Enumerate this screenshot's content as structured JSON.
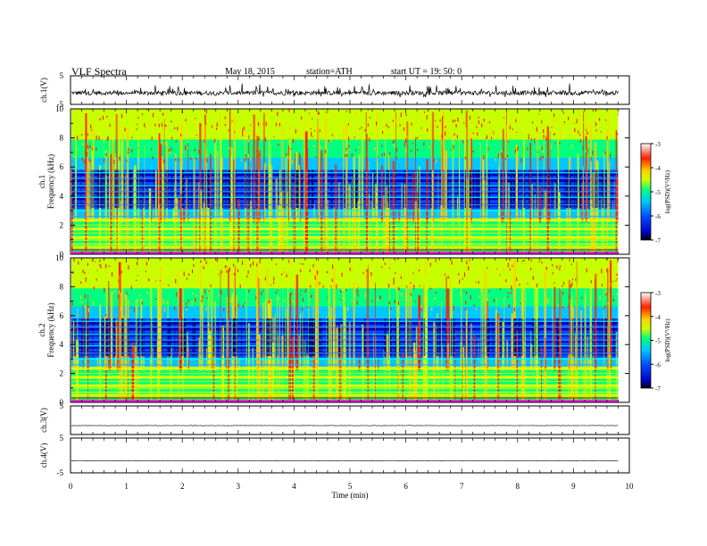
{
  "header": {
    "title": "VLF  Spectra",
    "date": "May 18, 2015",
    "station": "station=ATH",
    "start": "start  UT =   19: 50: 0"
  },
  "colors": {
    "axis": "#000000",
    "background": "#ffffff",
    "colormap": [
      "#000000",
      "#0000c8",
      "#0050ff",
      "#00c8ff",
      "#00ff80",
      "#c8ff00",
      "#ffd000",
      "#ff2000",
      "#ffffff"
    ]
  },
  "chart_data": [
    {
      "type": "line",
      "panel": "ch1-waveform",
      "ylabel": "ch.1(V)",
      "ylim": [
        -5,
        5
      ],
      "yticks": [
        "5",
        "-5"
      ],
      "trace_end_min": 9.8
    },
    {
      "type": "heatmap",
      "panel": "ch1-spectrogram",
      "ylabel_channel": "ch.1",
      "ylabel": "Frequency  (kHz)",
      "ylim": [
        0,
        10
      ],
      "yticks": [
        "0",
        "2",
        "4",
        "6",
        "8",
        "10"
      ],
      "xlim": [
        0,
        10
      ],
      "data_end_min": 9.8,
      "colorbar": {
        "label": "log(PSD)(V²/Hz)",
        "range": [
          -7,
          -3
        ],
        "ticks": [
          "-3",
          "-4",
          "-5",
          "-6",
          "-7"
        ]
      }
    },
    {
      "type": "heatmap",
      "panel": "ch2-spectrogram",
      "ylabel_channel": "ch.2",
      "ylabel": "Frequency  (kHz)",
      "ylim": [
        0,
        10
      ],
      "yticks": [
        "0",
        "2",
        "4",
        "6",
        "8",
        "10"
      ],
      "xlim": [
        0,
        10
      ],
      "data_end_min": 9.8,
      "colorbar": {
        "label": "log(PSD)(V²/Hz)",
        "range": [
          -7,
          -3
        ],
        "ticks": [
          "-3",
          "-4",
          "-5",
          "-6",
          "-7"
        ]
      }
    },
    {
      "type": "line",
      "panel": "ch3-waveform",
      "ylabel": "ch.3(V)",
      "ylim": [
        -5,
        5
      ],
      "yticks": [
        "5"
      ],
      "trace_end_min": 9.8
    },
    {
      "type": "line",
      "panel": "ch4-waveform",
      "ylabel": "ch.4(V)",
      "ylim": [
        -5,
        5
      ],
      "yticks": [
        "5",
        "-5"
      ],
      "trace_end_min": 9.8
    }
  ],
  "xaxis": {
    "label": "Time  (min)",
    "xlim": [
      0,
      10
    ],
    "ticks": [
      "0",
      "1",
      "2",
      "3",
      "4",
      "5",
      "6",
      "7",
      "8",
      "9",
      "10"
    ]
  }
}
